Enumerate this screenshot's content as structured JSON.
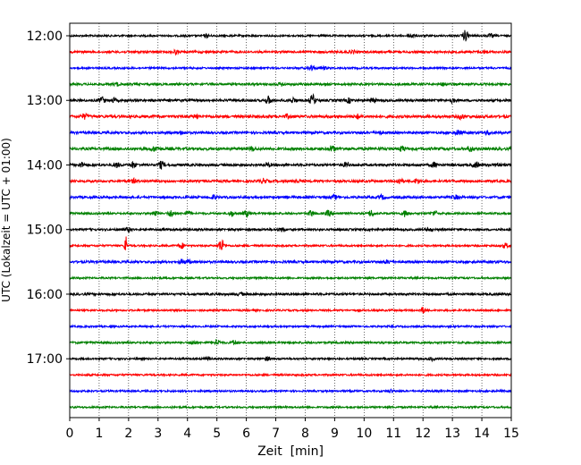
{
  "chart_data": {
    "type": "line",
    "xlabel": "Zeit  [min]",
    "ylabel": "UTC (Lokalzeit = UTC + 01:00)",
    "xlim": [
      0,
      15
    ],
    "x_ticks": [
      "0",
      "1",
      "2",
      "3",
      "4",
      "5",
      "6",
      "7",
      "8",
      "9",
      "10",
      "11",
      "12",
      "13",
      "14",
      "15"
    ],
    "y_ticks": [
      "12:00",
      "13:00",
      "14:00",
      "15:00",
      "16:00",
      "17:00"
    ],
    "trace_interval_min": 15,
    "grid": "vertical dotted lines at each minute",
    "series": [
      {
        "start": "12:00",
        "color": "#000000",
        "amplitude": 1.0,
        "events": [
          {
            "t": 4.65,
            "a": 1.6
          },
          {
            "t": 11.6,
            "a": 2.5
          },
          {
            "t": 13.45,
            "a": 6.0
          },
          {
            "t": 14.3,
            "a": 1.8
          }
        ]
      },
      {
        "start": "12:15",
        "color": "#ff0000",
        "amplitude": 1.2,
        "events": [
          {
            "t": 3.6,
            "a": 2.0
          },
          {
            "t": 9.6,
            "a": 1.6
          },
          {
            "t": 14.1,
            "a": 1.5
          }
        ]
      },
      {
        "start": "12:30",
        "color": "#0000ff",
        "amplitude": 1.0,
        "events": [
          {
            "t": 8.2,
            "a": 3.0
          },
          {
            "t": 8.6,
            "a": 2.0
          }
        ]
      },
      {
        "start": "12:45",
        "color": "#008000",
        "amplitude": 1.2,
        "events": [
          {
            "t": 1.6,
            "a": 1.6
          },
          {
            "t": 7.2,
            "a": 1.8
          },
          {
            "t": 12.7,
            "a": 1.4
          }
        ]
      },
      {
        "start": "13:00",
        "color": "#000000",
        "amplitude": 1.3,
        "events": [
          {
            "t": 1.1,
            "a": 3.5
          },
          {
            "t": 1.5,
            "a": 2.0
          },
          {
            "t": 6.75,
            "a": 4.0
          },
          {
            "t": 7.6,
            "a": 2.5
          },
          {
            "t": 8.25,
            "a": 5.5
          },
          {
            "t": 9.5,
            "a": 2.5
          },
          {
            "t": 10.3,
            "a": 2.5
          },
          {
            "t": 13.0,
            "a": 2.0
          }
        ]
      },
      {
        "start": "13:15",
        "color": "#ff0000",
        "amplitude": 1.5,
        "events": [
          {
            "t": 0.5,
            "a": 2.5
          },
          {
            "t": 4.3,
            "a": 1.8
          },
          {
            "t": 7.4,
            "a": 1.8
          },
          {
            "t": 9.8,
            "a": 2.0
          },
          {
            "t": 13.3,
            "a": 2.2
          }
        ]
      },
      {
        "start": "13:30",
        "color": "#0000ff",
        "amplitude": 1.3,
        "events": [
          {
            "t": 3.8,
            "a": 1.8
          },
          {
            "t": 10.5,
            "a": 2.0
          },
          {
            "t": 13.2,
            "a": 2.5
          },
          {
            "t": 14.2,
            "a": 2.0
          }
        ]
      },
      {
        "start": "13:45",
        "color": "#008000",
        "amplitude": 1.5,
        "events": [
          {
            "t": 2.9,
            "a": 2.5
          },
          {
            "t": 6.2,
            "a": 2.0
          },
          {
            "t": 8.9,
            "a": 3.0
          },
          {
            "t": 11.3,
            "a": 2.5
          },
          {
            "t": 13.6,
            "a": 2.5
          }
        ]
      },
      {
        "start": "14:00",
        "color": "#000000",
        "amplitude": 1.3,
        "events": [
          {
            "t": 0.4,
            "a": 2.5
          },
          {
            "t": 1.6,
            "a": 2.5
          },
          {
            "t": 2.15,
            "a": 3.0
          },
          {
            "t": 3.1,
            "a": 3.5
          },
          {
            "t": 6.7,
            "a": 2.0
          },
          {
            "t": 9.4,
            "a": 2.2
          },
          {
            "t": 12.4,
            "a": 2.5
          },
          {
            "t": 13.8,
            "a": 2.8
          },
          {
            "t": 14.5,
            "a": 2.0
          }
        ]
      },
      {
        "start": "14:15",
        "color": "#ff0000",
        "amplitude": 1.3,
        "events": [
          {
            "t": 2.2,
            "a": 2.0
          },
          {
            "t": 6.6,
            "a": 2.5
          },
          {
            "t": 7.7,
            "a": 2.0
          },
          {
            "t": 11.2,
            "a": 3.0
          },
          {
            "t": 11.8,
            "a": 2.5
          }
        ]
      },
      {
        "start": "14:30",
        "color": "#0000ff",
        "amplitude": 1.3,
        "events": [
          {
            "t": 4.9,
            "a": 2.0
          },
          {
            "t": 9.0,
            "a": 2.0
          },
          {
            "t": 10.6,
            "a": 2.0
          },
          {
            "t": 13.1,
            "a": 2.0
          }
        ]
      },
      {
        "start": "14:45",
        "color": "#008000",
        "amplitude": 1.1,
        "events": [
          {
            "t": 2.9,
            "a": 3.0
          },
          {
            "t": 3.45,
            "a": 3.5
          },
          {
            "t": 4.0,
            "a": 2.5
          },
          {
            "t": 5.5,
            "a": 2.5
          },
          {
            "t": 6.0,
            "a": 3.0
          },
          {
            "t": 8.2,
            "a": 3.0
          },
          {
            "t": 8.8,
            "a": 3.0
          },
          {
            "t": 10.25,
            "a": 3.5
          },
          {
            "t": 11.4,
            "a": 3.5
          },
          {
            "t": 12.4,
            "a": 2.5
          }
        ]
      },
      {
        "start": "15:00",
        "color": "#000000",
        "amplitude": 1.2,
        "events": [
          {
            "t": 2.0,
            "a": 2.0
          },
          {
            "t": 7.2,
            "a": 2.2
          },
          {
            "t": 12.2,
            "a": 1.5
          }
        ]
      },
      {
        "start": "15:15",
        "color": "#ff0000",
        "amplitude": 1.0,
        "events": [
          {
            "t": 1.9,
            "a": 14.0
          },
          {
            "t": 3.8,
            "a": 3.0
          },
          {
            "t": 5.15,
            "a": 6.5
          },
          {
            "t": 14.8,
            "a": 2.5
          }
        ]
      },
      {
        "start": "15:30",
        "color": "#0000ff",
        "amplitude": 1.3,
        "events": [
          {
            "t": 3.8,
            "a": 2.0
          },
          {
            "t": 4.0,
            "a": 2.0
          },
          {
            "t": 10.8,
            "a": 1.5
          }
        ]
      },
      {
        "start": "15:45",
        "color": "#008000",
        "amplitude": 1.0,
        "events": []
      },
      {
        "start": "16:00",
        "color": "#000000",
        "amplitude": 1.2,
        "events": [
          {
            "t": 5.8,
            "a": 1.5
          }
        ]
      },
      {
        "start": "16:15",
        "color": "#ff0000",
        "amplitude": 1.0,
        "events": [
          {
            "t": 12.0,
            "a": 3.0
          }
        ]
      },
      {
        "start": "16:30",
        "color": "#0000ff",
        "amplitude": 1.0,
        "events": []
      },
      {
        "start": "16:45",
        "color": "#008000",
        "amplitude": 1.1,
        "events": [
          {
            "t": 4.2,
            "a": 2.2
          },
          {
            "t": 5.0,
            "a": 3.5
          },
          {
            "t": 5.6,
            "a": 2.2
          }
        ]
      },
      {
        "start": "17:00",
        "color": "#000000",
        "amplitude": 1.0,
        "events": [
          {
            "t": 4.7,
            "a": 1.8
          },
          {
            "t": 6.7,
            "a": 1.8
          },
          {
            "t": 12.3,
            "a": 1.5
          }
        ]
      },
      {
        "start": "17:15",
        "color": "#ff0000",
        "amplitude": 1.0,
        "events": []
      },
      {
        "start": "17:30",
        "color": "#0000ff",
        "amplitude": 1.0,
        "events": [
          {
            "t": 10.9,
            "a": 1.5
          }
        ]
      },
      {
        "start": "17:45",
        "color": "#008000",
        "amplitude": 1.0,
        "events": []
      }
    ]
  }
}
